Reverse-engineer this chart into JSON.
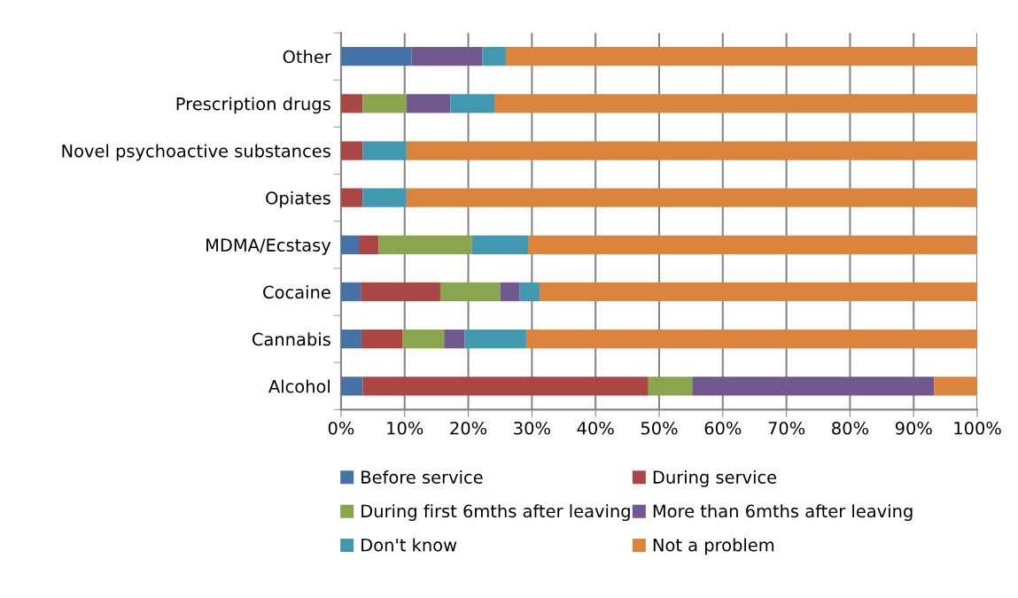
{
  "chart_data": {
    "type": "bar",
    "orientation": "horizontal",
    "stacked": true,
    "categories": [
      "Other",
      "Prescription drugs",
      "Novel psychoactive substances",
      "Opiates",
      "MDMA/Ecstasy",
      "Cocaine",
      "Cannabis",
      "Alcohol"
    ],
    "series": [
      {
        "name": "Before service",
        "color": "#4572a7",
        "values": [
          11.1,
          0,
          0,
          0,
          2.8,
          3.1,
          3.2,
          3.4
        ]
      },
      {
        "name": "During service",
        "color": "#aa4643",
        "values": [
          0,
          3.4,
          3.4,
          3.4,
          3.1,
          12.5,
          6.5,
          44.9
        ]
      },
      {
        "name": "During first 6mths after leaving",
        "color": "#89a54e",
        "values": [
          0,
          6.9,
          0,
          0,
          14.7,
          9.4,
          6.5,
          6.9
        ]
      },
      {
        "name": "More than 6mths after leaving",
        "color": "#71588f",
        "values": [
          11.1,
          6.9,
          0,
          0,
          0,
          3.1,
          3.2,
          38.0
        ]
      },
      {
        "name": "Don't know",
        "color": "#4198af",
        "values": [
          3.7,
          6.9,
          6.9,
          6.9,
          8.8,
          3.1,
          9.7,
          0
        ]
      },
      {
        "name": "Not a problem",
        "color": "#db843d",
        "values": [
          74.1,
          75.9,
          89.7,
          89.7,
          70.6,
          68.8,
          71.0,
          6.8
        ]
      }
    ],
    "xlim": [
      0,
      100
    ],
    "xticks": [
      {
        "value": 0,
        "label": "0%"
      },
      {
        "value": 10,
        "label": "10%"
      },
      {
        "value": 20,
        "label": "20%"
      },
      {
        "value": 30,
        "label": "30%"
      },
      {
        "value": 40,
        "label": "40%"
      },
      {
        "value": 50,
        "label": "50%"
      },
      {
        "value": 60,
        "label": "60%"
      },
      {
        "value": 70,
        "label": "70%"
      },
      {
        "value": 80,
        "label": "80%"
      },
      {
        "value": 90,
        "label": "90%"
      },
      {
        "value": 100,
        "label": "100%"
      }
    ],
    "grid": "x",
    "legend": "bottom"
  }
}
